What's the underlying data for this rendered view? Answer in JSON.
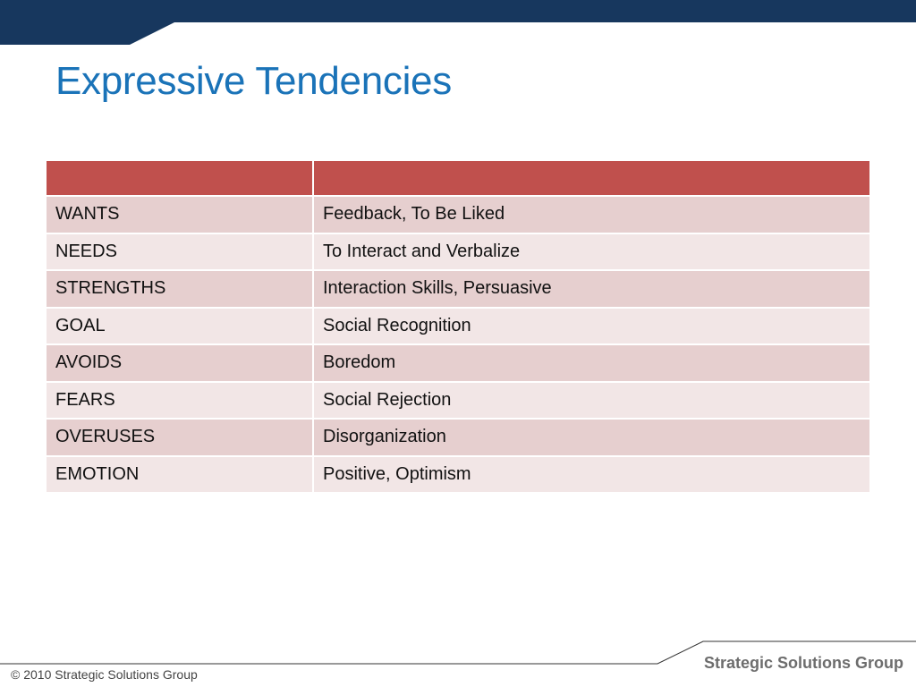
{
  "colors": {
    "header_bar": "#17375e",
    "title": "#1a73b8",
    "table_header": "#c0504d",
    "row_odd": "#e6cfcf",
    "row_even": "#f2e6e6"
  },
  "slide": {
    "title": "Expressive Tendencies"
  },
  "table": {
    "headers": [
      "",
      ""
    ],
    "rows": [
      [
        "WANTS",
        "Feedback, To Be Liked"
      ],
      [
        "NEEDS",
        "To Interact and Verbalize"
      ],
      [
        "STRENGTHS",
        "Interaction Skills, Persuasive"
      ],
      [
        "GOAL",
        "Social Recognition"
      ],
      [
        "AVOIDS",
        "Boredom"
      ],
      [
        "FEARS",
        "Social Rejection"
      ],
      [
        "OVERUSES",
        "Disorganization"
      ],
      [
        "EMOTION",
        "Positive, Optimism"
      ]
    ]
  },
  "footer": {
    "copyright": "© 2010 Strategic Solutions Group",
    "brand": "Strategic Solutions Group"
  }
}
